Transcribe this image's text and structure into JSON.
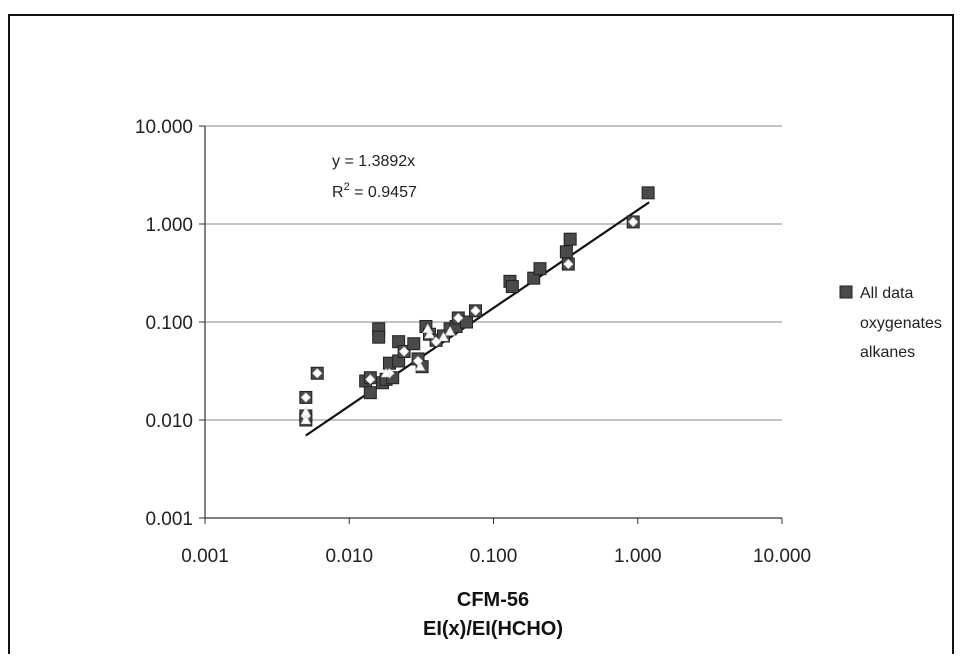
{
  "chart_data": {
    "type": "scatter",
    "xscale": "log",
    "yscale": "log",
    "xlim": [
      0.001,
      10
    ],
    "ylim": [
      0.001,
      10
    ],
    "x_tick_labels": [
      "0.001",
      "0.010",
      "0.100",
      "1.000",
      "10.000"
    ],
    "y_tick_labels": [
      "0.001",
      "0.010",
      "0.100",
      "1.000",
      "10.000"
    ],
    "xlabel_line1": "CFM-56",
    "xlabel_line2": "EI(x)/EI(HCHO)",
    "ylabel": "",
    "grid": "horizontal",
    "legend_position": "right",
    "legend": [
      "All data",
      "oxygenates",
      "alkanes"
    ],
    "trendline": {
      "slope": 1.3892,
      "x_range": [
        0.005,
        1.2
      ],
      "equation": "y = 1.3892x",
      "r2_label": "R",
      "r2_sup": "2",
      "r2_value": " = 0.9457"
    },
    "series": [
      {
        "name": "All data",
        "marker": "square",
        "color": "#4a4a4a",
        "points": [
          [
            0.005,
            0.017
          ],
          [
            0.005,
            0.011
          ],
          [
            0.005,
            0.01
          ],
          [
            0.006,
            0.03
          ],
          [
            0.013,
            0.025
          ],
          [
            0.014,
            0.027
          ],
          [
            0.014,
            0.019
          ],
          [
            0.016,
            0.085
          ],
          [
            0.016,
            0.07
          ],
          [
            0.017,
            0.024
          ],
          [
            0.018,
            0.026
          ],
          [
            0.019,
            0.038
          ],
          [
            0.02,
            0.027
          ],
          [
            0.022,
            0.063
          ],
          [
            0.022,
            0.04
          ],
          [
            0.024,
            0.05
          ],
          [
            0.028,
            0.06
          ],
          [
            0.03,
            0.042
          ],
          [
            0.032,
            0.035
          ],
          [
            0.034,
            0.09
          ],
          [
            0.036,
            0.075
          ],
          [
            0.04,
            0.065
          ],
          [
            0.045,
            0.072
          ],
          [
            0.05,
            0.085
          ],
          [
            0.055,
            0.09
          ],
          [
            0.057,
            0.11
          ],
          [
            0.065,
            0.1
          ],
          [
            0.075,
            0.13
          ],
          [
            0.13,
            0.26
          ],
          [
            0.135,
            0.23
          ],
          [
            0.19,
            0.28
          ],
          [
            0.21,
            0.35
          ],
          [
            0.32,
            0.52
          ],
          [
            0.34,
            0.7
          ],
          [
            0.33,
            0.39
          ],
          [
            0.93,
            1.05
          ],
          [
            1.18,
            2.08
          ]
        ]
      },
      {
        "name": "oxygenates",
        "marker": "diamond",
        "color": "#ffffff",
        "points": [
          [
            0.005,
            0.017
          ],
          [
            0.005,
            0.011
          ],
          [
            0.006,
            0.03
          ],
          [
            0.014,
            0.026
          ],
          [
            0.019,
            0.03
          ],
          [
            0.024,
            0.05
          ],
          [
            0.03,
            0.04
          ],
          [
            0.04,
            0.063
          ],
          [
            0.057,
            0.11
          ],
          [
            0.075,
            0.13
          ],
          [
            0.33,
            0.39
          ],
          [
            0.93,
            1.05
          ]
        ]
      },
      {
        "name": "alkanes",
        "marker": "triangle",
        "color": "#ffffff",
        "points": [
          [
            0.005,
            0.01
          ],
          [
            0.005,
            0.012
          ],
          [
            0.018,
            0.03
          ],
          [
            0.031,
            0.035
          ],
          [
            0.035,
            0.085
          ],
          [
            0.036,
            0.075
          ],
          [
            0.045,
            0.07
          ],
          [
            0.05,
            0.08
          ]
        ]
      }
    ]
  }
}
